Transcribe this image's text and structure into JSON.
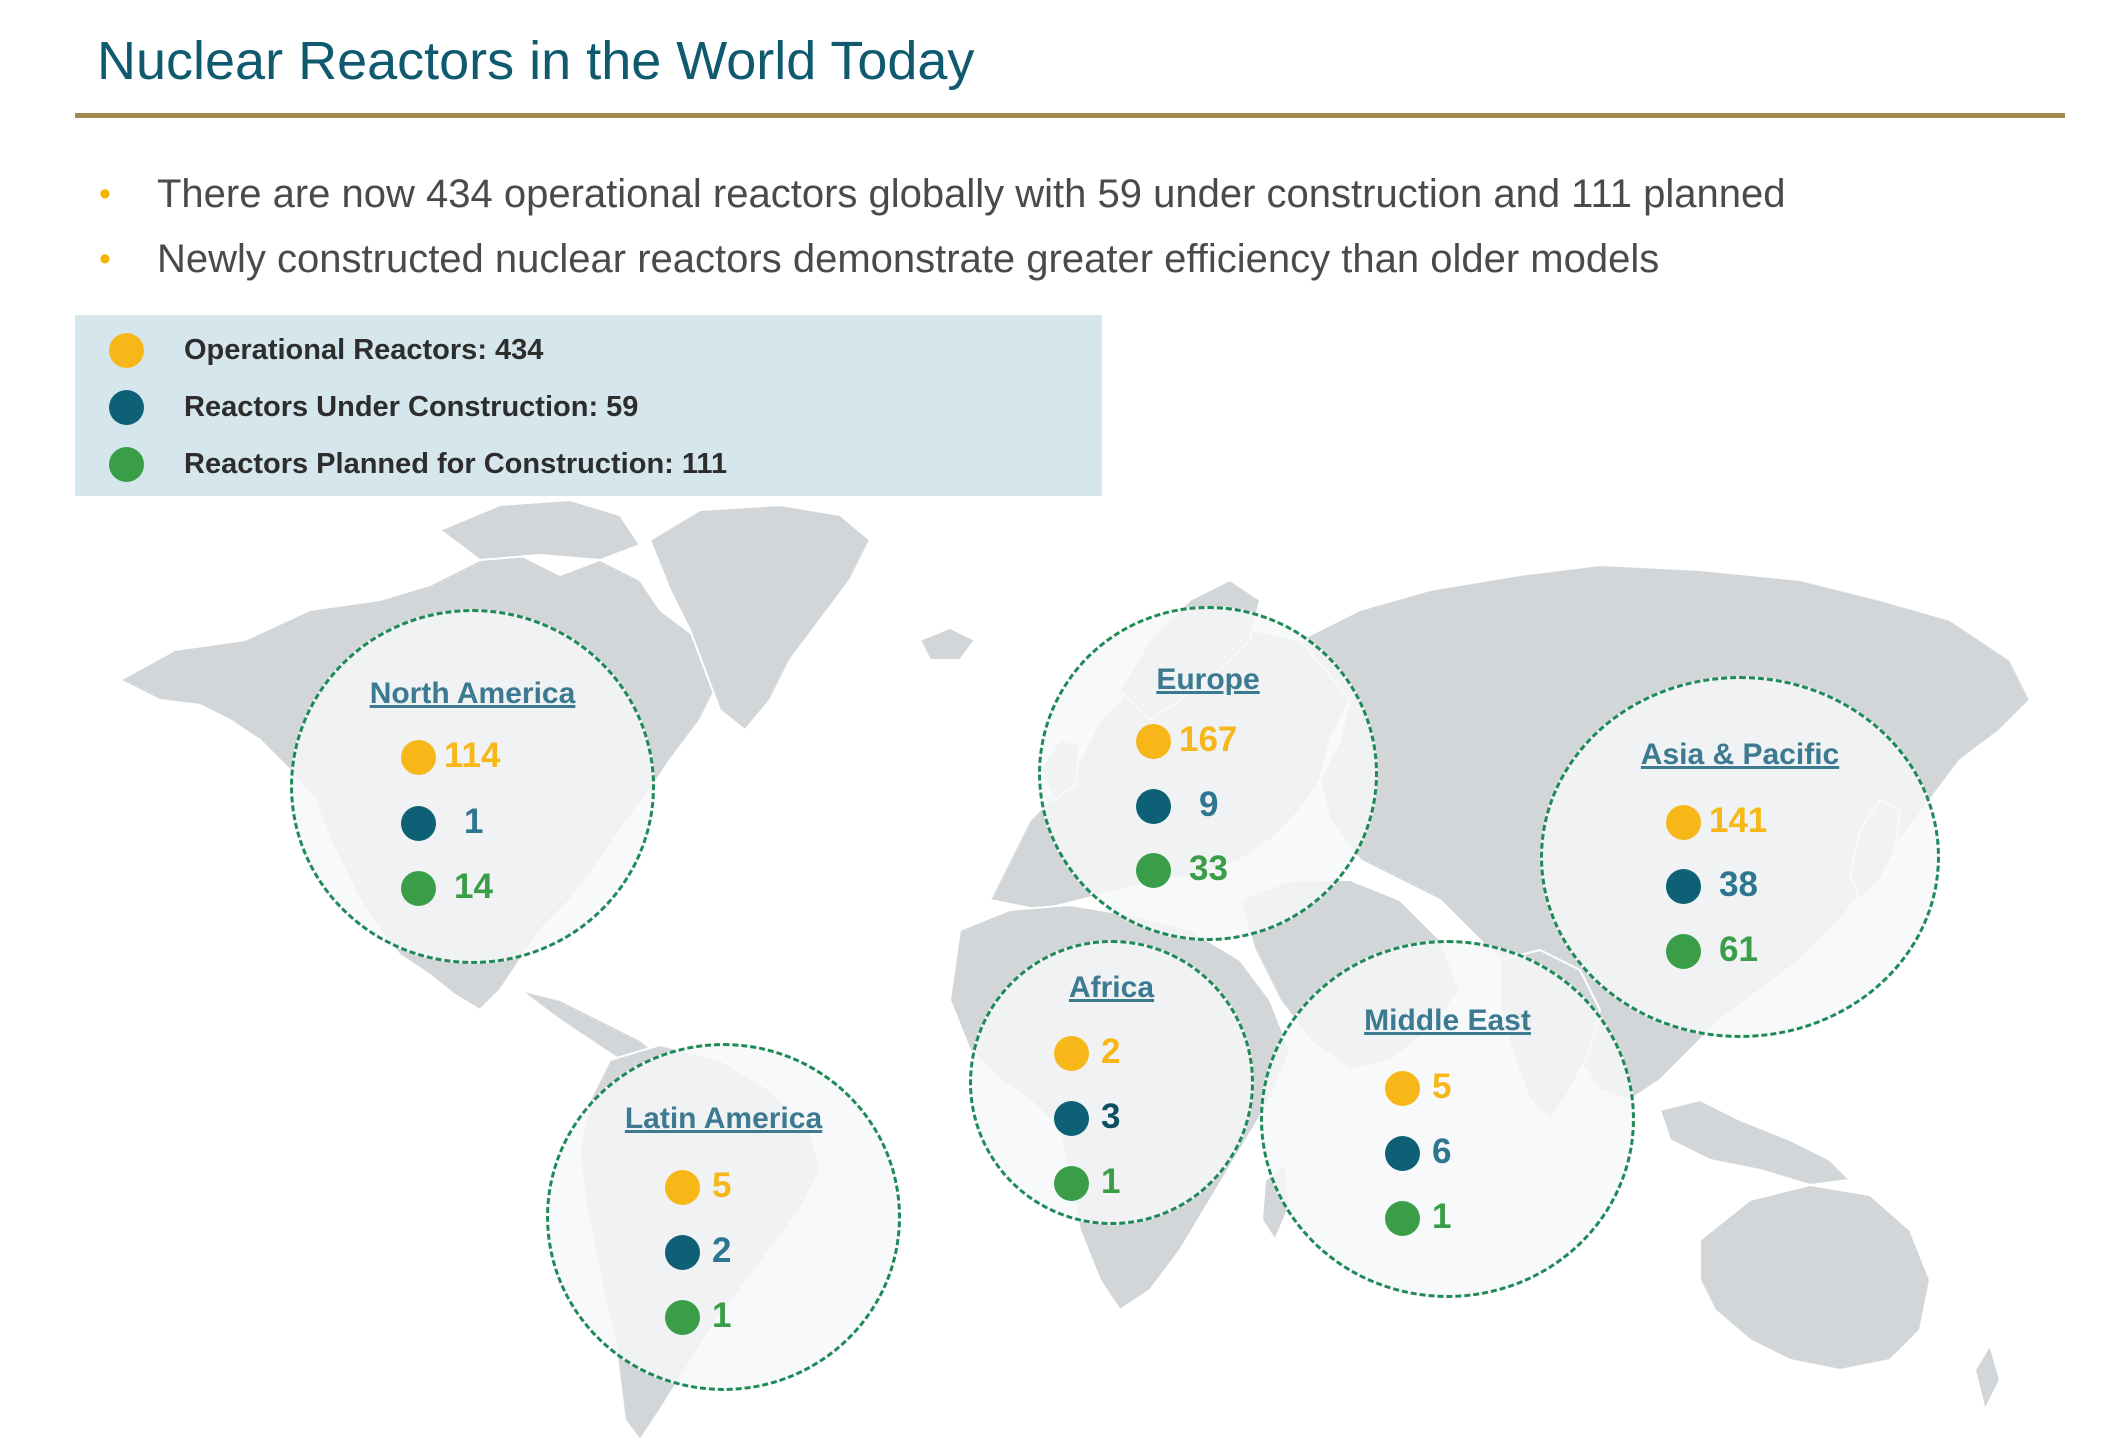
{
  "title": "Nuclear Reactors in the World Today",
  "bullets": [
    "There are now 434 operational reactors globally with 59 under construction and 111 planned",
    "Newly constructed nuclear reactors demonstrate greater efficiency than older models"
  ],
  "colors": {
    "operational": "#f7b718",
    "under_construction": "#0d6075",
    "planned": "#3a9e48",
    "title": "#0f5a6e",
    "rule": "#a08c4e",
    "legend_bg": "#d6e6ed",
    "circle_border": "#1e8a56"
  },
  "legend": [
    {
      "label": "Operational Reactors: 434",
      "category": "operational"
    },
    {
      "label": "Reactors Under Construction: 59",
      "category": "under_construction"
    },
    {
      "label": "Reactors Planned for Construction: 111",
      "category": "planned"
    }
  ],
  "regions": {
    "north_america": {
      "name": "North America",
      "operational": "114",
      "under_construction": "1",
      "planned": "14"
    },
    "latin_america": {
      "name": "Latin America",
      "operational": "5",
      "under_construction": "2",
      "planned": "1"
    },
    "europe": {
      "name": "Europe",
      "operational": "167",
      "under_construction": "9",
      "planned": "33"
    },
    "africa": {
      "name": "Africa",
      "operational": "2",
      "under_construction": "3",
      "planned": "1"
    },
    "middle_east": {
      "name": "Middle East",
      "operational": "5",
      "under_construction": "6",
      "planned": "1"
    },
    "asia_pacific": {
      "name": "Asia & Pacific",
      "operational": "141",
      "under_construction": "38",
      "planned": "61"
    }
  },
  "map": {
    "base": "world-map-gray-silhouette"
  }
}
